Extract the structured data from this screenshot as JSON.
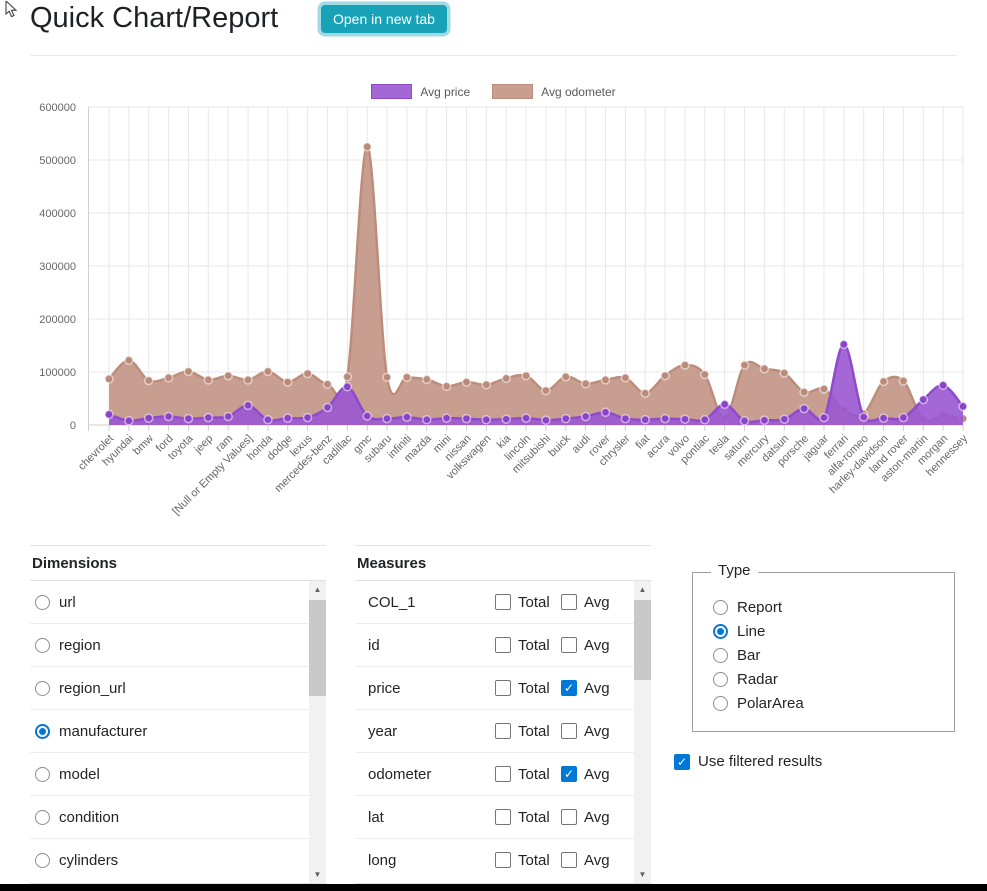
{
  "header": {
    "title": "Quick Chart/Report",
    "open_button": "Open in new tab"
  },
  "colors": {
    "accent_teal": "#17a2b8",
    "check_blue": "#0078d7",
    "grid": "#e7e7e7",
    "axis_line": "#cfcfcf",
    "axis_text": "#666666"
  },
  "icons": {
    "scroll_up": "▲",
    "scroll_down": "▼",
    "checkmark": "✓"
  },
  "chart_data": {
    "type": "area",
    "title": "",
    "xlabel": "",
    "ylabel": "",
    "ylim": [
      0,
      600000
    ],
    "yticks": [
      0,
      100000,
      200000,
      300000,
      400000,
      500000,
      600000
    ],
    "grid": true,
    "legend_position": "top",
    "categories": [
      "chevrolet",
      "hyundai",
      "bmw",
      "ford",
      "toyota",
      "jeep",
      "ram",
      "[Null or Empty Values]",
      "honda",
      "dodge",
      "lexus",
      "mercedes-benz",
      "cadillac",
      "gmc",
      "subaru",
      "infiniti",
      "mazda",
      "mini",
      "nissan",
      "volkswagen",
      "kia",
      "lincoln",
      "mitsubishi",
      "buick",
      "audi",
      "rover",
      "chrysler",
      "fiat",
      "acura",
      "volvo",
      "pontiac",
      "tesla",
      "saturn",
      "mercury",
      "datsun",
      "porsche",
      "jaguar",
      "ferrari",
      "alfa-romeo",
      "harley-davidson",
      "land rover",
      "aston-martin",
      "morgan",
      "hennessey"
    ],
    "series": [
      {
        "name": "Avg price",
        "color": "#9a56d2",
        "fill": "rgba(154,86,210,0.9)",
        "line": "#8f4bcc",
        "point": "#8a44c8",
        "values": [
          20000,
          8000,
          13000,
          16000,
          12000,
          14000,
          16000,
          37000,
          10000,
          13000,
          14000,
          33000,
          72000,
          17000,
          12000,
          15000,
          10000,
          13000,
          12000,
          10000,
          11000,
          13000,
          9000,
          12000,
          16000,
          24000,
          12000,
          10000,
          12000,
          11000,
          10000,
          39000,
          8000,
          9000,
          11000,
          31000,
          14000,
          152000,
          15000,
          13000,
          14000,
          48000,
          75000,
          35000
        ]
      },
      {
        "name": "Avg odometer",
        "color": "#c5998a",
        "fill": "rgba(197,153,138,0.95)",
        "line": "#bd8d7b",
        "point": "#bb8a79",
        "values": [
          87000,
          122000,
          84000,
          89000,
          101000,
          85000,
          93000,
          85000,
          101000,
          81000,
          97000,
          77000,
          91000,
          525000,
          90000,
          90000,
          86000,
          73000,
          81000,
          76000,
          88000,
          93000,
          65000,
          91000,
          78000,
          85000,
          89000,
          60000,
          93000,
          113000,
          95000,
          12000,
          113000,
          106000,
          98000,
          62000,
          68000,
          28000,
          21000,
          82000,
          83000,
          10000,
          18000,
          12000
        ]
      }
    ]
  },
  "dimensions": {
    "title": "Dimensions",
    "selected": "manufacturer",
    "items": [
      "url",
      "region",
      "region_url",
      "manufacturer",
      "model",
      "condition",
      "cylinders"
    ]
  },
  "measures": {
    "title": "Measures",
    "total_label": "Total",
    "avg_label": "Avg",
    "items": [
      {
        "name": "COL_1",
        "total": false,
        "avg": false
      },
      {
        "name": "id",
        "total": false,
        "avg": false
      },
      {
        "name": "price",
        "total": false,
        "avg": true
      },
      {
        "name": "year",
        "total": false,
        "avg": false
      },
      {
        "name": "odometer",
        "total": false,
        "avg": true
      },
      {
        "name": "lat",
        "total": false,
        "avg": false
      },
      {
        "name": "long",
        "total": false,
        "avg": false
      }
    ]
  },
  "type_panel": {
    "legend": "Type",
    "selected": "Line",
    "options": [
      "Report",
      "Line",
      "Bar",
      "Radar",
      "PolarArea"
    ]
  },
  "filters": {
    "label": "Use filtered results",
    "checked": true
  }
}
